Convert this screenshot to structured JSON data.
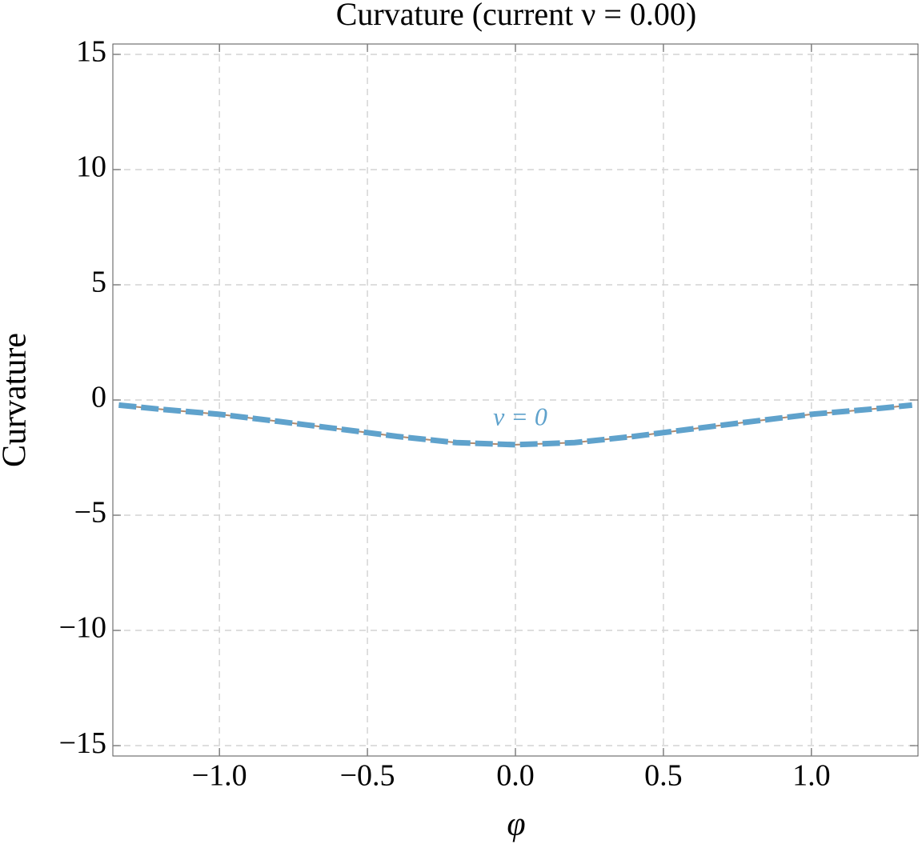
{
  "chart_data": {
    "type": "line",
    "title": "Curvature   (current  ν = 0.00)",
    "x_label": "φ",
    "y_label": "Curvature",
    "annotation": "ν = 0",
    "x": [
      -1.34,
      -1.2,
      -1.0,
      -0.8,
      -0.6,
      -0.4,
      -0.2,
      0.0,
      0.2,
      0.4,
      0.6,
      0.8,
      1.0,
      1.2,
      1.34
    ],
    "series": [
      {
        "color": "#5fa2cc",
        "values": [
          -0.22,
          -0.4,
          -0.62,
          -0.93,
          -1.25,
          -1.58,
          -1.85,
          -1.94,
          -1.85,
          -1.58,
          -1.25,
          -0.93,
          -0.62,
          -0.4,
          -0.22
        ]
      }
    ],
    "xlim": [
      -1.36,
      1.36
    ],
    "ylim": [
      -15.45,
      15.45
    ],
    "xticks": [
      {
        "value": -1.0,
        "label": "−1.0"
      },
      {
        "value": -0.5,
        "label": "−0.5"
      },
      {
        "value": 0,
        "label": "0.0"
      },
      0.5,
      {
        "value": 1.0,
        "label": "1.0"
      }
    ],
    "yticks": [
      {
        "value": -15,
        "label": "−15"
      },
      {
        "value": -10,
        "label": "−10"
      },
      {
        "value": -5,
        "label": "−5"
      },
      0,
      5,
      10,
      15
    ],
    "grid": true
  }
}
